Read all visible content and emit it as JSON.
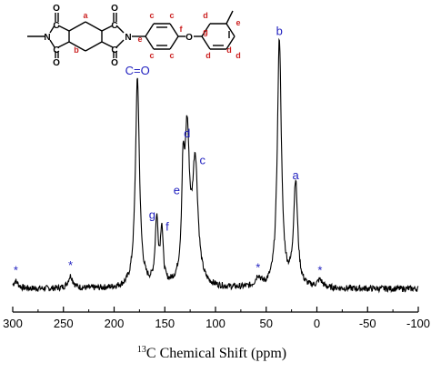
{
  "chart_data": {
    "type": "line",
    "xlabel_sup": "13",
    "xlabel_main": "C Chemical Shift (ppm)",
    "xlim": [
      300,
      -100
    ],
    "x_reversed": true,
    "grid": false,
    "legend": "none",
    "x_ticks": [
      300,
      250,
      200,
      150,
      100,
      50,
      0,
      -50,
      -100
    ],
    "x_tick_labels": [
      "300",
      "250",
      "200",
      "150",
      "100",
      "50",
      "0",
      "-50",
      "-100"
    ],
    "line_color": "#000000",
    "label_color": "#1f1fbf",
    "baseline": 0.02,
    "peaks": [
      {
        "label": "C=O",
        "x": 177,
        "height": 0.84,
        "width": 2.4
      },
      {
        "label": "g",
        "x": 158,
        "height": 0.26,
        "width": 1.8
      },
      {
        "label": "f",
        "x": 153,
        "height": 0.22,
        "width": 1.6
      },
      {
        "label": "e",
        "x": 132,
        "height": 0.36,
        "width": 1.6
      },
      {
        "label": "d",
        "x": 128,
        "height": 0.58,
        "width": 2.8
      },
      {
        "label": "c",
        "x": 120,
        "height": 0.48,
        "width": 3.2
      },
      {
        "label": "b",
        "x": 37,
        "height": 1.0,
        "width": 2.4
      },
      {
        "label": "a",
        "x": 21,
        "height": 0.42,
        "width": 2.4
      }
    ],
    "spinning_sidebands": [
      {
        "label": "*",
        "x": 297,
        "height": 0.03
      },
      {
        "label": "*",
        "x": 243,
        "height": 0.05
      },
      {
        "label": "*",
        "x": 58,
        "height": 0.04
      },
      {
        "label": "*",
        "x": -3,
        "height": 0.03
      }
    ]
  },
  "molecule": {
    "atoms": [
      {
        "key": "N1",
        "text": "N"
      },
      {
        "key": "C1",
        "text": "C"
      },
      {
        "key": "C2",
        "text": "C"
      },
      {
        "key": "O1",
        "text": "O"
      },
      {
        "key": "O2",
        "text": "O"
      },
      {
        "key": "C3",
        "text": "C"
      },
      {
        "key": "C4",
        "text": "C"
      },
      {
        "key": "O3",
        "text": "O"
      },
      {
        "key": "O4",
        "text": "O"
      },
      {
        "key": "N2",
        "text": "N"
      },
      {
        "key": "O5",
        "text": "O"
      }
    ],
    "sites": [
      {
        "key": "a",
        "text": "a"
      },
      {
        "key": "b",
        "text": "b"
      },
      {
        "key": "c1",
        "text": "c"
      },
      {
        "key": "c2",
        "text": "c"
      },
      {
        "key": "c3",
        "text": "c"
      },
      {
        "key": "c4",
        "text": "c"
      },
      {
        "key": "e1",
        "text": "e"
      },
      {
        "key": "f1",
        "text": "f"
      },
      {
        "key": "g1",
        "text": "g"
      },
      {
        "key": "d1",
        "text": "d"
      },
      {
        "key": "d2",
        "text": "d"
      },
      {
        "key": "d3",
        "text": "d"
      },
      {
        "key": "d4",
        "text": "d"
      },
      {
        "key": "e2",
        "text": "e"
      }
    ]
  }
}
